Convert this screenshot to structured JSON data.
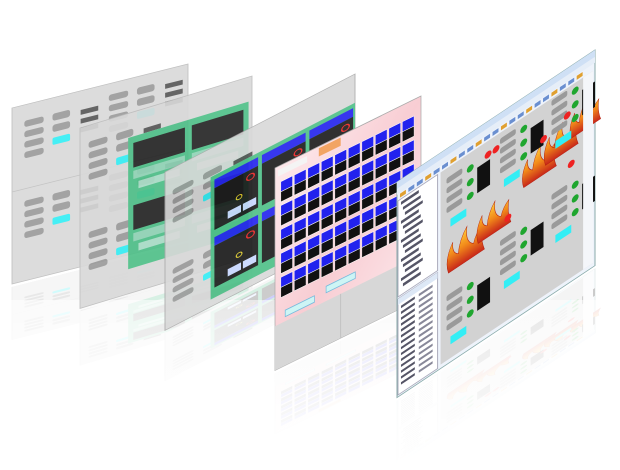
{
  "scene": {
    "background": "#ffffff",
    "panels": [
      {
        "id": "grey-control-screen-back",
        "style": "grey",
        "accent": "#33e6f0"
      },
      {
        "id": "green-monitor-screen",
        "style": "green",
        "accent": "#4cc08a"
      },
      {
        "id": "blue-card-screen",
        "style": "blue-cards",
        "accent": "#1a1aff"
      },
      {
        "id": "pink-grid-screen",
        "style": "pink-grid",
        "accent": "#1f1fe0"
      },
      {
        "id": "fire-alarm-app-window",
        "style": "fire-app",
        "accent": "#3a7bd5"
      }
    ],
    "colors": {
      "panel_grey": "#d9d9d9",
      "button_grey": "#9a9a9a",
      "cyan_button": "#33eef5",
      "green_area": "#4dbf87",
      "blue_header": "#2222ee",
      "black_readout": "#111111",
      "pink_bg": "#fbe3e6",
      "alarm_red": "#ee2222",
      "ok_green": "#1fa62f",
      "flame_orange": "#f28a1a",
      "flame_red": "#c8281a",
      "window_titlebar": "#cfe0f5"
    }
  }
}
